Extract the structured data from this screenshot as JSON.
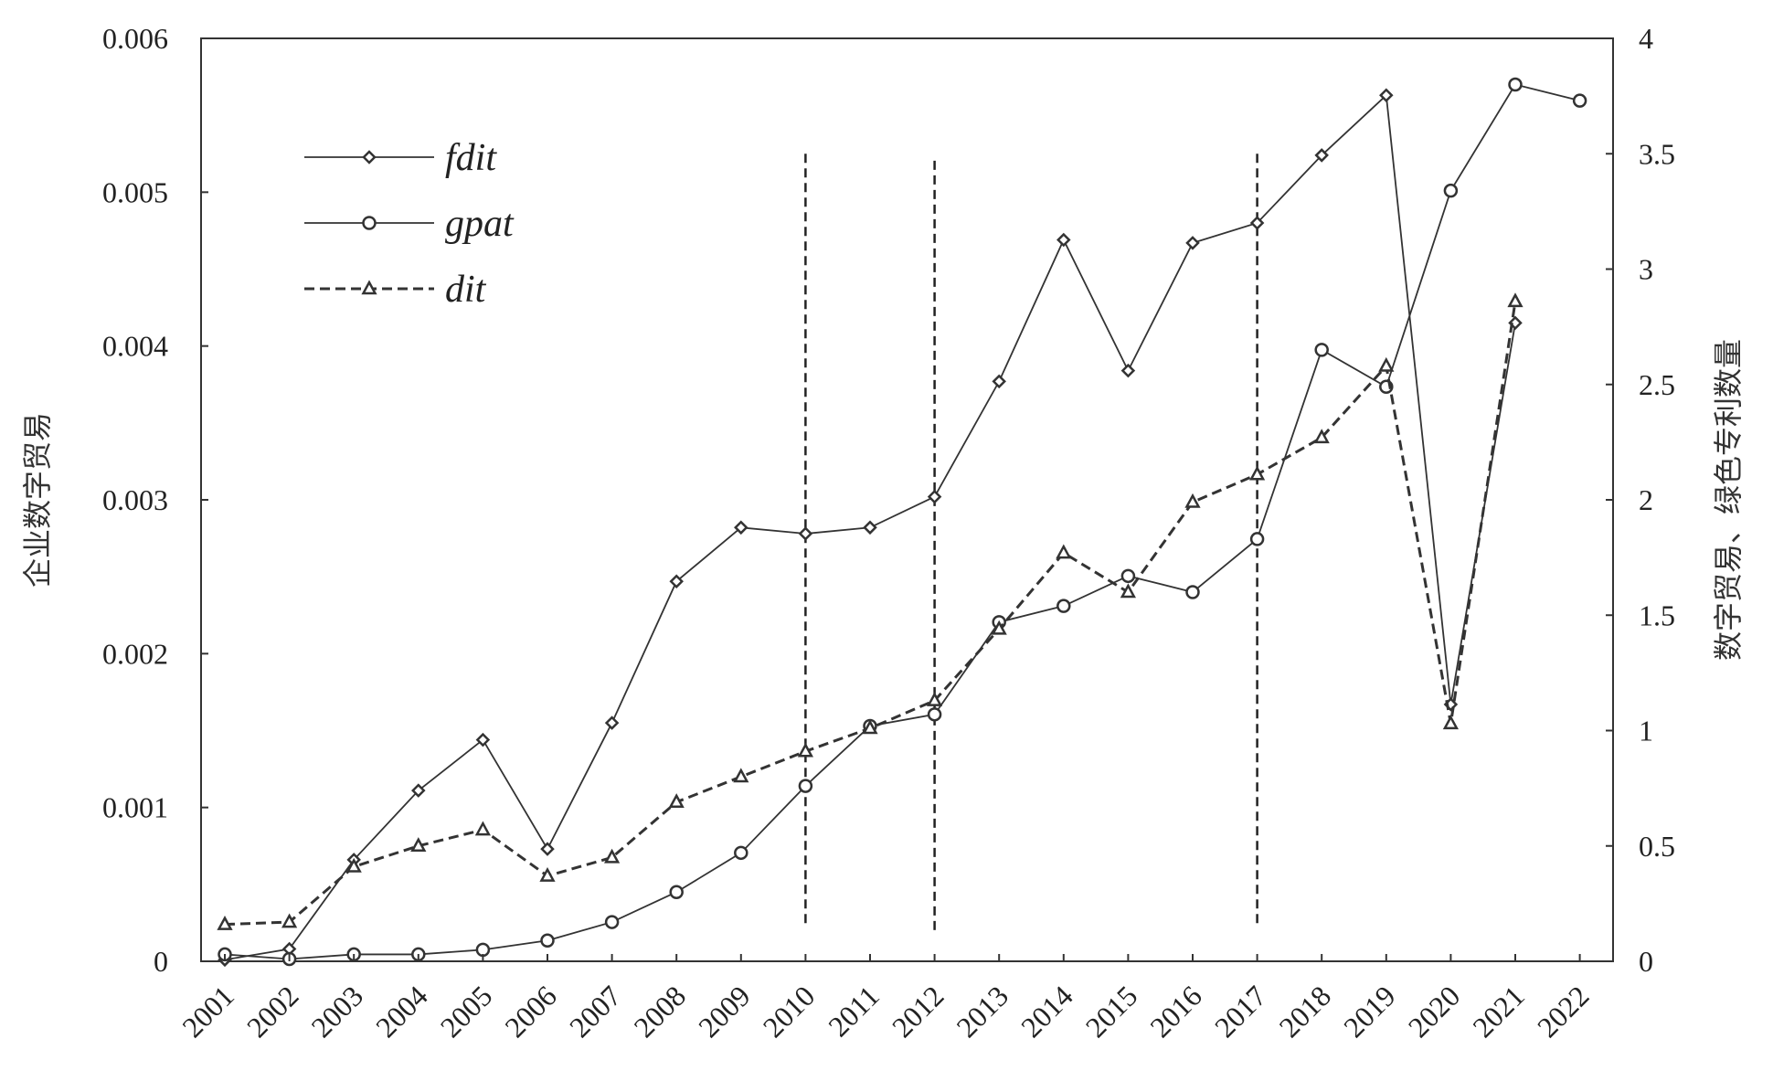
{
  "chart_data": {
    "type": "line",
    "categories": [
      "2001",
      "2002",
      "2003",
      "2004",
      "2005",
      "2006",
      "2007",
      "2008",
      "2009",
      "2010",
      "2011",
      "2012",
      "2013",
      "2014",
      "2015",
      "2016",
      "2017",
      "2018",
      "2019",
      "2020",
      "2021",
      "2022"
    ],
    "ylabel_left": "企业数字贸易",
    "ylabel_right": "数字贸易、绿色专利数量",
    "ylim_left": [
      0,
      0.006
    ],
    "ylim_right": [
      0,
      4
    ],
    "yticks_left": [
      "0",
      "0.001",
      "0.002",
      "0.003",
      "0.004",
      "0.005",
      "0.006"
    ],
    "yticks_right": [
      "0",
      "0.5",
      "1",
      "1.5",
      "2",
      "2.5",
      "3",
      "3.5",
      "4"
    ],
    "grid": false,
    "legend_position": "top-left",
    "series": [
      {
        "name": "fdit",
        "axis": "left",
        "marker": "diamond",
        "line": "solid",
        "color": "#333333",
        "values": [
          1e-05,
          8e-05,
          0.00066,
          0.00111,
          0.00144,
          0.00073,
          0.00155,
          0.00247,
          0.00282,
          0.00278,
          0.00282,
          0.00302,
          0.00377,
          0.00469,
          0.00384,
          0.00467,
          0.0048,
          0.00524,
          0.00563,
          0.00167,
          0.00415,
          null
        ]
      },
      {
        "name": "gpat",
        "axis": "right",
        "marker": "circle",
        "line": "solid",
        "color": "#333333",
        "values": [
          0.03,
          0.01,
          0.03,
          0.03,
          0.05,
          0.09,
          0.17,
          0.3,
          0.47,
          0.76,
          1.02,
          1.07,
          1.47,
          1.54,
          1.67,
          1.6,
          1.83,
          2.65,
          2.49,
          3.34,
          3.8,
          3.73
        ]
      },
      {
        "name": "dit",
        "axis": "right",
        "marker": "triangle",
        "line": "dashed",
        "color": "#333333",
        "values": [
          0.16,
          0.17,
          0.41,
          0.5,
          0.57,
          0.37,
          0.45,
          0.69,
          0.8,
          0.91,
          1.01,
          1.13,
          1.44,
          1.77,
          1.6,
          1.99,
          2.11,
          2.27,
          2.58,
          1.03,
          2.86,
          null
        ]
      }
    ],
    "annotations": [
      {
        "type": "vertical-dashed-line",
        "x": "2010",
        "y_from": 0.15,
        "y_to": 3.5
      },
      {
        "type": "vertical-dashed-line",
        "x": "2012",
        "y_from": 0.12,
        "y_to": 3.47
      },
      {
        "type": "vertical-dashed-line",
        "x": "2017",
        "y_from": 0.15,
        "y_to": 3.5
      }
    ]
  }
}
